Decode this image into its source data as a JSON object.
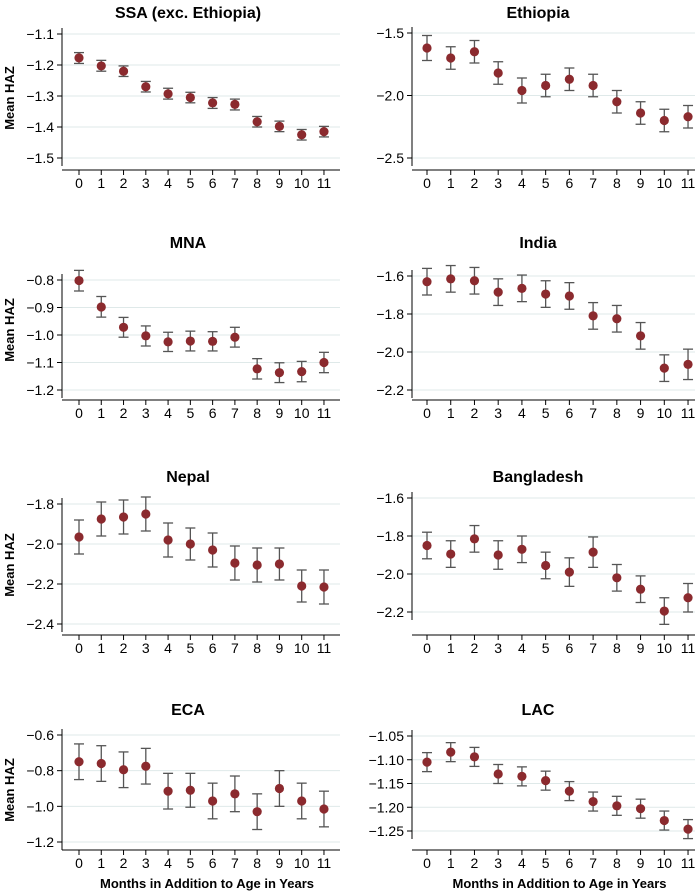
{
  "chart_data": [
    {
      "type": "scatter",
      "title": "SSA (exc. Ethiopia)",
      "ylabel": "Mean HAZ",
      "xlabel": "",
      "x": [
        0,
        1,
        2,
        3,
        4,
        5,
        6,
        7,
        8,
        9,
        10,
        11
      ],
      "ylim": [
        -1.5,
        -1.1
      ],
      "yticks": [
        -1.1,
        -1.2,
        -1.3,
        -1.4,
        -1.5
      ],
      "ytick_labels": [
        "−1.1",
        "−1.2",
        "−1.3",
        "−1.4",
        "−1.5"
      ],
      "series": [
        {
          "name": "Mean HAZ",
          "values": [
            -1.177,
            -1.203,
            -1.22,
            -1.27,
            -1.293,
            -1.305,
            -1.322,
            -1.327,
            -1.383,
            -1.398,
            -1.425,
            -1.415
          ],
          "lower": [
            -1.195,
            -1.22,
            -1.237,
            -1.287,
            -1.31,
            -1.322,
            -1.34,
            -1.345,
            -1.4,
            -1.415,
            -1.442,
            -1.432
          ],
          "upper": [
            -1.16,
            -1.185,
            -1.203,
            -1.253,
            -1.275,
            -1.288,
            -1.305,
            -1.31,
            -1.366,
            -1.381,
            -1.408,
            -1.398
          ]
        }
      ]
    },
    {
      "type": "scatter",
      "title": "Ethiopia",
      "ylabel": "",
      "xlabel": "",
      "x": [
        0,
        1,
        2,
        3,
        4,
        5,
        6,
        7,
        8,
        9,
        10,
        11
      ],
      "ylim": [
        -2.5,
        -1.5
      ],
      "yticks": [
        -1.5,
        -2.0,
        -2.5
      ],
      "ytick_labels": [
        "−1.5",
        "−2.0",
        "−2.5"
      ],
      "series": [
        {
          "name": "Mean HAZ",
          "values": [
            -1.62,
            -1.7,
            -1.65,
            -1.82,
            -1.96,
            -1.92,
            -1.87,
            -1.92,
            -2.05,
            -2.14,
            -2.2,
            -2.17
          ],
          "lower": [
            -1.72,
            -1.79,
            -1.74,
            -1.91,
            -2.06,
            -2.01,
            -1.96,
            -2.01,
            -2.14,
            -2.23,
            -2.29,
            -2.26
          ],
          "upper": [
            -1.52,
            -1.61,
            -1.56,
            -1.73,
            -1.86,
            -1.83,
            -1.78,
            -1.83,
            -1.96,
            -2.05,
            -2.11,
            -2.08
          ]
        }
      ]
    },
    {
      "type": "scatter",
      "title": "MNA",
      "ylabel": "Mean HAZ",
      "xlabel": "",
      "x": [
        0,
        1,
        2,
        3,
        4,
        5,
        6,
        7,
        8,
        9,
        10,
        11
      ],
      "ylim": [
        -1.2,
        -0.8
      ],
      "yticks": [
        -0.8,
        -0.9,
        -1.0,
        -1.1,
        -1.2
      ],
      "ytick_labels": [
        "−0.8",
        "−0.9",
        "−1.0",
        "−1.1",
        "−1.2"
      ],
      "series": [
        {
          "name": "Mean HAZ",
          "values": [
            -0.802,
            -0.898,
            -0.972,
            -1.003,
            -1.025,
            -1.022,
            -1.023,
            -1.008,
            -1.123,
            -1.137,
            -1.133,
            -1.1
          ],
          "lower": [
            -0.84,
            -0.935,
            -1.008,
            -1.04,
            -1.06,
            -1.058,
            -1.058,
            -1.044,
            -1.16,
            -1.173,
            -1.17,
            -1.137
          ],
          "upper": [
            -0.765,
            -0.86,
            -0.936,
            -0.967,
            -0.99,
            -0.986,
            -0.988,
            -0.972,
            -1.086,
            -1.101,
            -1.096,
            -1.063
          ]
        }
      ]
    },
    {
      "type": "scatter",
      "title": "India",
      "ylabel": "",
      "xlabel": "",
      "x": [
        0,
        1,
        2,
        3,
        4,
        5,
        6,
        7,
        8,
        9,
        10,
        11
      ],
      "ylim": [
        -2.2,
        -1.6
      ],
      "yticks": [
        -1.6,
        -1.8,
        -2.0,
        -2.2
      ],
      "ytick_labels": [
        "−1.6",
        "−1.8",
        "−2.0",
        "−2.2"
      ],
      "series": [
        {
          "name": "Mean HAZ",
          "values": [
            -1.63,
            -1.615,
            -1.625,
            -1.685,
            -1.665,
            -1.695,
            -1.705,
            -1.81,
            -1.825,
            -1.915,
            -2.085,
            -2.065
          ],
          "lower": [
            -1.7,
            -1.685,
            -1.695,
            -1.755,
            -1.735,
            -1.765,
            -1.775,
            -1.88,
            -1.895,
            -1.985,
            -2.155,
            -2.145
          ],
          "upper": [
            -1.56,
            -1.545,
            -1.555,
            -1.615,
            -1.595,
            -1.625,
            -1.635,
            -1.74,
            -1.755,
            -1.845,
            -2.015,
            -1.985
          ]
        }
      ]
    },
    {
      "type": "scatter",
      "title": "Nepal",
      "ylabel": "Mean HAZ",
      "xlabel": "",
      "x": [
        0,
        1,
        2,
        3,
        4,
        5,
        6,
        7,
        8,
        9,
        10,
        11
      ],
      "ylim": [
        -2.4,
        -1.8
      ],
      "yticks": [
        -1.8,
        -2.0,
        -2.2,
        -2.4
      ],
      "ytick_labels": [
        "−1.8",
        "−2.0",
        "−2.2",
        "−2.4"
      ],
      "series": [
        {
          "name": "Mean HAZ",
          "values": [
            -1.965,
            -1.875,
            -1.865,
            -1.85,
            -1.98,
            -2.0,
            -2.03,
            -2.095,
            -2.105,
            -2.1,
            -2.21,
            -2.215
          ],
          "lower": [
            -2.05,
            -1.96,
            -1.95,
            -1.935,
            -2.065,
            -2.08,
            -2.115,
            -2.18,
            -2.19,
            -2.18,
            -2.29,
            -2.3
          ],
          "upper": [
            -1.88,
            -1.79,
            -1.78,
            -1.765,
            -1.895,
            -1.92,
            -1.945,
            -2.01,
            -2.02,
            -2.02,
            -2.13,
            -2.13
          ]
        }
      ]
    },
    {
      "type": "scatter",
      "title": "Bangladesh",
      "ylabel": "",
      "xlabel": "",
      "x": [
        0,
        1,
        2,
        3,
        4,
        5,
        6,
        7,
        8,
        9,
        10,
        11
      ],
      "ylim": [
        -2.2,
        -1.6
      ],
      "yticks": [
        -1.6,
        -1.8,
        -2.0,
        -2.2
      ],
      "ytick_labels": [
        "−1.6",
        "−1.8",
        "−2.0",
        "−2.2"
      ],
      "series": [
        {
          "name": "Mean HAZ",
          "values": [
            -1.85,
            -1.895,
            -1.815,
            -1.9,
            -1.87,
            -1.955,
            -1.99,
            -1.885,
            -2.02,
            -2.08,
            -2.195,
            -2.125
          ],
          "lower": [
            -1.92,
            -1.965,
            -1.885,
            -1.975,
            -1.94,
            -2.025,
            -2.065,
            -1.965,
            -2.09,
            -2.15,
            -2.265,
            -2.2
          ],
          "upper": [
            -1.78,
            -1.825,
            -1.745,
            -1.825,
            -1.8,
            -1.885,
            -1.915,
            -1.805,
            -1.95,
            -2.01,
            -2.125,
            -2.05
          ]
        }
      ]
    },
    {
      "type": "scatter",
      "title": "ECA",
      "ylabel": "Mean HAZ",
      "xlabel": "Months in Addition to Age in Years",
      "x": [
        0,
        1,
        2,
        3,
        4,
        5,
        6,
        7,
        8,
        9,
        10,
        11
      ],
      "ylim": [
        -1.2,
        -0.6
      ],
      "yticks": [
        -0.6,
        -0.8,
        -1.0,
        -1.2
      ],
      "ytick_labels": [
        "−0.6",
        "−0.8",
        "−1.0",
        "−1.2"
      ],
      "series": [
        {
          "name": "Mean HAZ",
          "values": [
            -0.75,
            -0.76,
            -0.795,
            -0.775,
            -0.915,
            -0.91,
            -0.97,
            -0.93,
            -1.03,
            -0.9,
            -0.97,
            -1.015
          ],
          "lower": [
            -0.85,
            -0.86,
            -0.895,
            -0.875,
            -1.015,
            -1.005,
            -1.07,
            -1.03,
            -1.13,
            -1.0,
            -1.07,
            -1.115
          ],
          "upper": [
            -0.65,
            -0.66,
            -0.695,
            -0.675,
            -0.815,
            -0.815,
            -0.87,
            -0.83,
            -0.93,
            -0.8,
            -0.87,
            -0.915
          ]
        }
      ]
    },
    {
      "type": "scatter",
      "title": "LAC",
      "ylabel": "",
      "xlabel": "Months in Addition to Age in Years",
      "x": [
        0,
        1,
        2,
        3,
        4,
        5,
        6,
        7,
        8,
        9,
        10,
        11
      ],
      "ylim": [
        -1.25,
        -1.05
      ],
      "yticks": [
        -1.05,
        -1.1,
        -1.15,
        -1.2,
        -1.25
      ],
      "ytick_labels": [
        "−1.05",
        "−1.10",
        "−1.15",
        "−1.20",
        "−1.25"
      ],
      "series": [
        {
          "name": "Mean HAZ",
          "values": [
            -1.105,
            -1.084,
            -1.094,
            -1.13,
            -1.135,
            -1.144,
            -1.166,
            -1.188,
            -1.197,
            -1.203,
            -1.228,
            -1.246
          ],
          "lower": [
            -1.125,
            -1.104,
            -1.114,
            -1.15,
            -1.155,
            -1.164,
            -1.186,
            -1.208,
            -1.217,
            -1.223,
            -1.248,
            -1.266
          ],
          "upper": [
            -1.085,
            -1.064,
            -1.074,
            -1.11,
            -1.115,
            -1.124,
            -1.146,
            -1.168,
            -1.177,
            -1.183,
            -1.208,
            -1.226
          ]
        }
      ]
    }
  ]
}
